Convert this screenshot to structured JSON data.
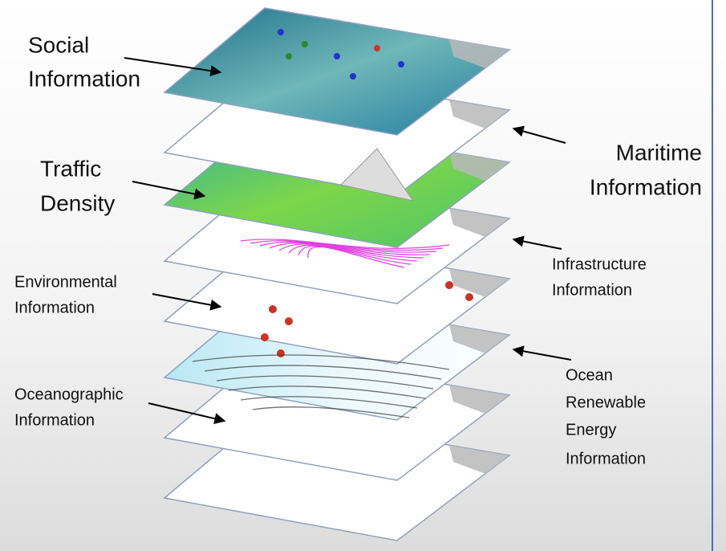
{
  "labels": [
    {
      "lines": [
        "Social",
        "Information"
      ]
    },
    {
      "lines": [
        "Maritime",
        "Information"
      ]
    },
    {
      "lines": [
        "Traffic",
        "Density"
      ]
    },
    {
      "lines": [
        "Infrastructure",
        "Information"
      ]
    },
    {
      "lines": [
        "Environmental",
        "Information"
      ]
    },
    {
      "lines": [
        "Ocean",
        "Renewable",
        "Energy",
        "Information"
      ]
    },
    {
      "lines": [
        "Oceanographic",
        "Information"
      ]
    }
  ]
}
